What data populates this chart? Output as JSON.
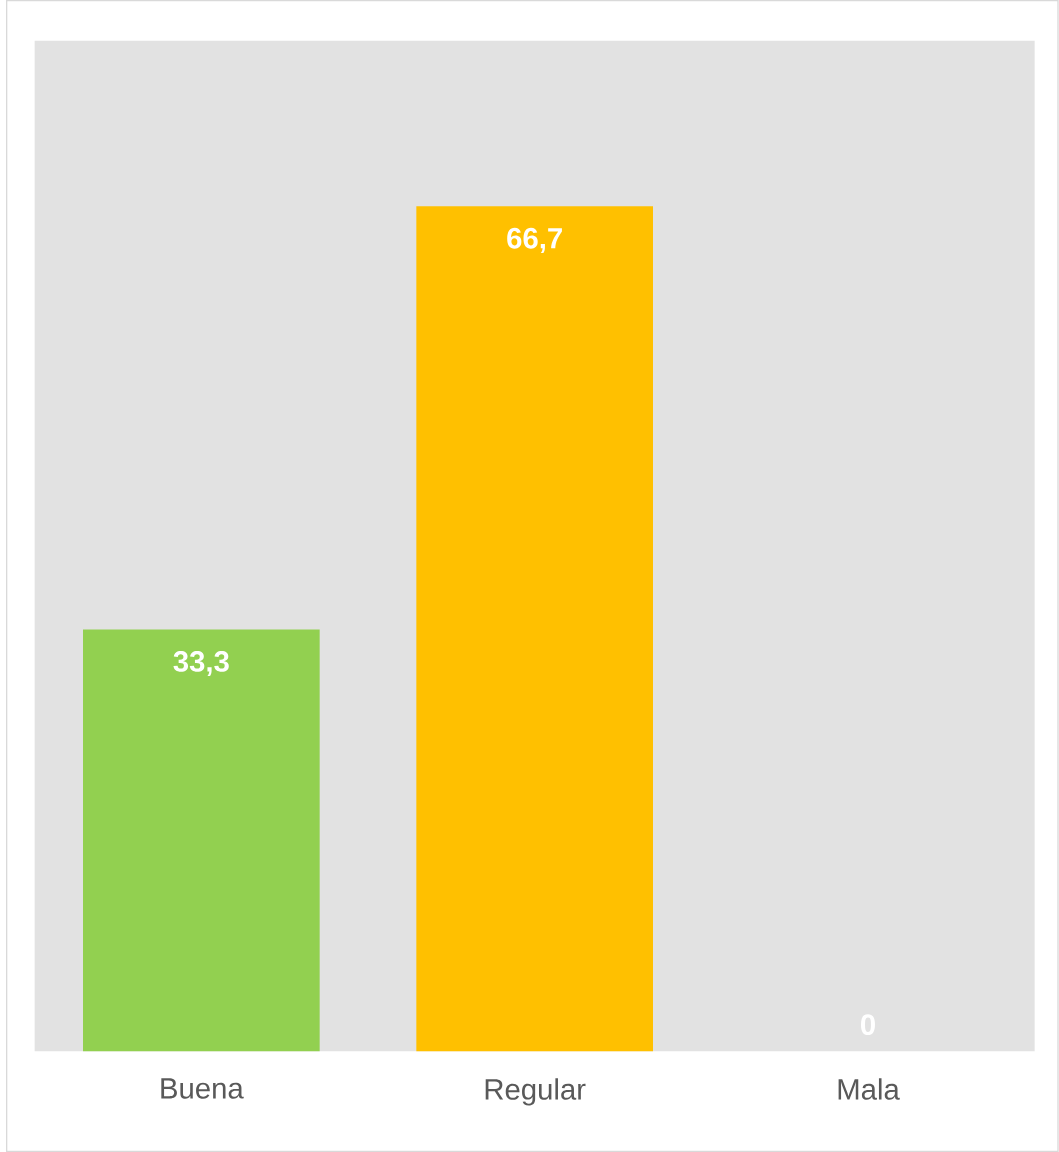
{
  "chart_data": {
    "type": "bar",
    "categories": [
      "Buena",
      "Regular",
      "Mala"
    ],
    "values": [
      33.3,
      66.7,
      0
    ],
    "colors": [
      "#92d050",
      "#ffc000",
      "#a5a5a5"
    ],
    "value_labels": [
      "33,3",
      "66,7",
      "0"
    ]
  }
}
